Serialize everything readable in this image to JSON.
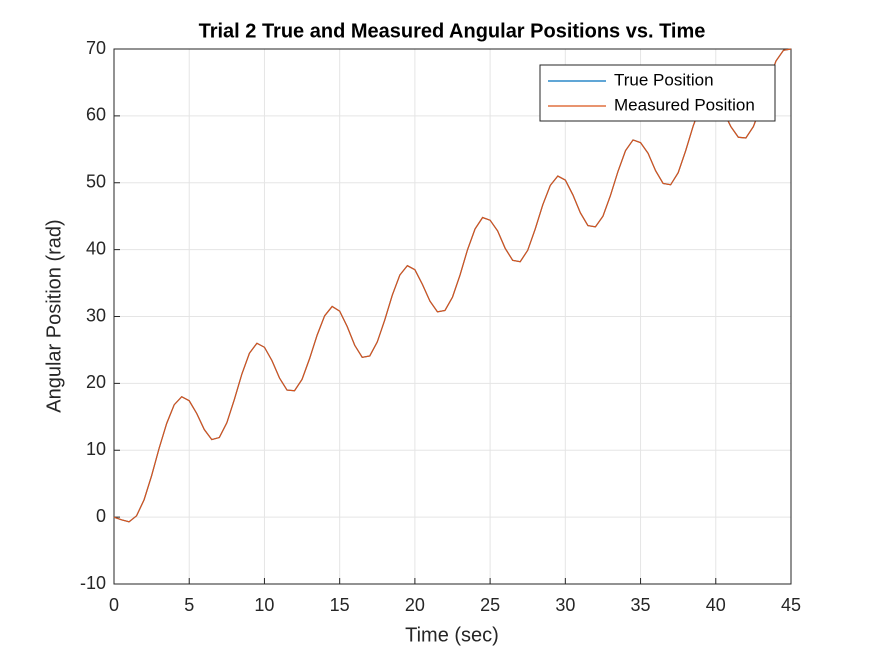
{
  "chart_data": {
    "type": "line",
    "title": "Trial 2 True and Measured Angular Positions vs. Time",
    "xlabel": "Time (sec)",
    "ylabel": "Angular Position (rad)",
    "x": [
      0,
      0.5,
      1,
      1.5,
      2,
      2.5,
      3,
      3.5,
      4,
      4.5,
      5,
      5.5,
      6,
      6.5,
      7,
      7.5,
      8,
      8.5,
      9,
      9.5,
      10,
      10.5,
      11,
      11.5,
      12,
      12.5,
      13,
      13.5,
      14,
      14.5,
      15,
      15.5,
      16,
      16.5,
      17,
      17.5,
      18,
      18.5,
      19,
      19.5,
      20,
      20.5,
      21,
      21.5,
      22,
      22.5,
      23,
      23.5,
      24,
      24.5,
      25,
      25.5,
      26,
      26.5,
      27,
      27.5,
      28,
      28.5,
      29,
      29.5,
      30,
      30.5,
      31,
      31.5,
      32,
      32.5,
      33,
      33.5,
      34,
      34.5,
      35,
      35.5,
      36,
      36.5,
      37,
      37.5,
      38,
      38.5,
      39,
      39.5,
      40,
      40.5,
      41,
      41.5,
      42,
      42.5,
      43,
      43.5,
      44,
      44.5,
      45
    ],
    "series": [
      {
        "name": "True Position",
        "color": "#0072bd",
        "values": [
          0,
          -0.4,
          -0.7,
          0.2,
          2.6,
          6.2,
          10.3,
          14.0,
          16.8,
          18.0,
          17.4,
          15.5,
          13.1,
          11.6,
          11.9,
          14.1,
          17.6,
          21.4,
          24.5,
          26.0,
          25.4,
          23.4,
          20.8,
          19.0,
          18.9,
          20.6,
          23.7,
          27.2,
          30.1,
          31.5,
          30.8,
          28.5,
          25.7,
          23.9,
          24.1,
          26.2,
          29.5,
          33.2,
          36.2,
          37.6,
          37.0,
          34.8,
          32.3,
          30.7,
          30.9,
          32.9,
          36.2,
          40.0,
          43.1,
          44.8,
          44.4,
          42.8,
          40.2,
          38.4,
          38.2,
          39.9,
          43.1,
          46.7,
          49.6,
          51.0,
          50.4,
          48.2,
          45.5,
          43.6,
          43.4,
          45.0,
          48.1,
          51.7,
          54.8,
          56.4,
          56.0,
          54.4,
          51.8,
          49.9,
          49.7,
          51.5,
          54.8,
          58.5,
          61.5,
          63.0,
          62.5,
          60.7,
          58.4,
          56.8,
          56.7,
          58.4,
          61.4,
          65.1,
          68.2,
          69.8,
          70.0
        ]
      },
      {
        "name": "Measured Position",
        "color": "#d95319",
        "values": [
          0,
          -0.4,
          -0.7,
          0.2,
          2.6,
          6.2,
          10.3,
          14.0,
          16.8,
          18.0,
          17.4,
          15.5,
          13.1,
          11.6,
          11.9,
          14.1,
          17.6,
          21.4,
          24.5,
          26.0,
          25.4,
          23.4,
          20.8,
          19.0,
          18.9,
          20.6,
          23.7,
          27.2,
          30.1,
          31.5,
          30.8,
          28.5,
          25.7,
          23.9,
          24.1,
          26.2,
          29.5,
          33.2,
          36.2,
          37.6,
          37.0,
          34.8,
          32.3,
          30.7,
          30.9,
          32.9,
          36.2,
          40.0,
          43.1,
          44.8,
          44.4,
          42.8,
          40.2,
          38.4,
          38.2,
          39.9,
          43.1,
          46.7,
          49.6,
          51.0,
          50.4,
          48.2,
          45.5,
          43.6,
          43.4,
          45.0,
          48.1,
          51.7,
          54.8,
          56.4,
          56.0,
          54.4,
          51.8,
          49.9,
          49.7,
          51.5,
          54.8,
          58.5,
          61.5,
          63.0,
          62.5,
          60.7,
          58.4,
          56.8,
          56.7,
          58.4,
          61.4,
          65.1,
          68.2,
          69.8,
          70.0
        ]
      }
    ],
    "xlim": [
      0,
      45
    ],
    "xticks": [
      0,
      5,
      10,
      15,
      20,
      25,
      30,
      35,
      40,
      45
    ],
    "ylim": [
      -10,
      70
    ],
    "yticks": [
      -10,
      0,
      10,
      20,
      30,
      40,
      50,
      60,
      70
    ],
    "grid": true,
    "legend": "northeast"
  }
}
